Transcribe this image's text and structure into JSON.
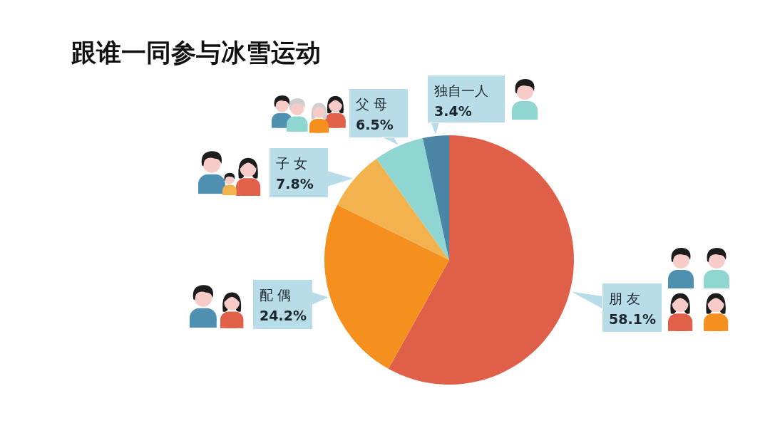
{
  "chart_data": {
    "type": "pie",
    "title": "跟谁一同参与冰雪运动",
    "categories": [
      "朋 友",
      "配 偶",
      "子 女",
      "父 母",
      "独自一人"
    ],
    "values": [
      58.1,
      24.2,
      7.8,
      6.5,
      3.4
    ],
    "colors": [
      "#e05f48",
      "#f5901f",
      "#f2b24e",
      "#8fd6d3",
      "#4b86a6"
    ],
    "value_labels": [
      "58.1%",
      "24.2%",
      "7.8%",
      "6.5%",
      "3.4%"
    ]
  }
}
